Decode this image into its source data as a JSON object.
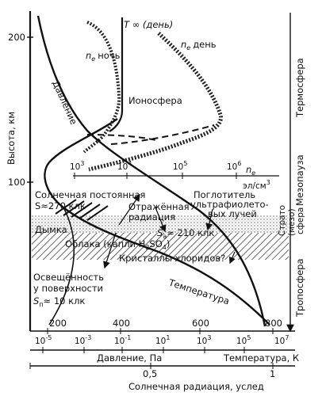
{
  "axes": {
    "y_title": "Высота, км",
    "y_ticks": [
      "200",
      "100"
    ],
    "x_pressure_title": "Давление, Па",
    "x_pressure_ticks": [
      "10",
      "10",
      "10",
      "10",
      "10",
      "10"
    ],
    "x_pressure_exps": [
      "-5",
      "-3",
      "-1",
      "1",
      "3",
      "5"
    ],
    "x_temp_title": "Температура, К",
    "x_temp_ticks": [
      "200",
      "400",
      "600",
      "800"
    ],
    "x_temp_extra": [
      "10",
      "7"
    ],
    "x_rad_title": "Солнечная радиация, услед",
    "x_rad_ticks": [
      "0,5",
      "1"
    ],
    "x_ne_ticks": [
      "10",
      "10",
      "10",
      "10"
    ],
    "x_ne_exps": [
      "3",
      "4",
      "5",
      "6"
    ],
    "ne_unit": "эл/см",
    "ne_unit_exp": "3",
    "ne_axis_label": "n"
  },
  "labels": {
    "t_inf": "T ∞ (день)",
    "ne_night": "n",
    "ne_night_word": "ночь",
    "ne_day": "n",
    "ne_day_word": "день",
    "ne_sub": "e",
    "ionosphere": "Ионосфера",
    "pressure_curve": "Давление",
    "temperature_curve": "Температура",
    "solar_constant_1": "Солнечная постоянная",
    "solar_constant_2": "S≈270 клк",
    "reflected_1": "Отражённая",
    "reflected_2": "радиация",
    "absorber_1": "Поглотитель",
    "absorber_2": "ультрафиолето-",
    "absorber_3": "вых лучей",
    "sa": "S",
    "sa_sub": "a",
    "sa_value": "≈ 210 клк",
    "haze": "Дымка",
    "clouds": "Облака (капли H",
    "clouds_2": "SO",
    "clouds_3": ")",
    "crystals": "Кристаллы хлоридов?",
    "surface_1": "Освещённость",
    "surface_2": "у поверхности",
    "surface_3": "S",
    "surface_sub": "п",
    "surface_4": "≈ 10 клк",
    "thermosphere": "Термосфера",
    "mesopause": "Мезопауза",
    "strato_1": "Страто",
    "strato_2": "(мезо)",
    "strato_3": "сфера",
    "troposphere": "Тропосфера"
  }
}
